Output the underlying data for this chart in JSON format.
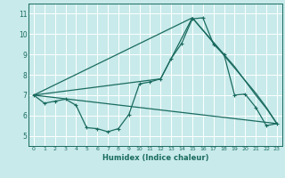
{
  "xlabel": "Humidex (Indice chaleur)",
  "xlim": [
    -0.5,
    23.5
  ],
  "ylim": [
    4.5,
    11.5
  ],
  "yticks": [
    5,
    6,
    7,
    8,
    9,
    10,
    11
  ],
  "xticks": [
    0,
    1,
    2,
    3,
    4,
    5,
    6,
    7,
    8,
    9,
    10,
    11,
    12,
    13,
    14,
    15,
    16,
    17,
    18,
    19,
    20,
    21,
    22,
    23
  ],
  "bg_color": "#c8eaea",
  "line_color": "#1a6b60",
  "grid_color": "#ffffff",
  "lines": [
    {
      "x": [
        0,
        1,
        2,
        3,
        4,
        5,
        6,
        7,
        8,
        9,
        10,
        11,
        12,
        13,
        14,
        15,
        16,
        17,
        18,
        19,
        20,
        21,
        22,
        23
      ],
      "y": [
        7.0,
        6.6,
        6.7,
        6.8,
        6.5,
        5.4,
        5.35,
        5.2,
        5.35,
        6.05,
        7.55,
        7.65,
        7.8,
        8.8,
        9.55,
        10.75,
        10.8,
        9.5,
        9.0,
        7.0,
        7.05,
        6.4,
        5.5,
        5.6
      ]
    },
    {
      "x": [
        0,
        15,
        21,
        22,
        23
      ],
      "y": [
        7.0,
        10.8,
        7.1,
        6.4,
        5.6
      ]
    },
    {
      "x": [
        0,
        12,
        15,
        19,
        21,
        22,
        23
      ],
      "y": [
        7.0,
        7.8,
        10.8,
        8.4,
        7.0,
        6.35,
        5.6
      ]
    },
    {
      "x": [
        0,
        23
      ],
      "y": [
        7.0,
        5.6
      ]
    }
  ]
}
